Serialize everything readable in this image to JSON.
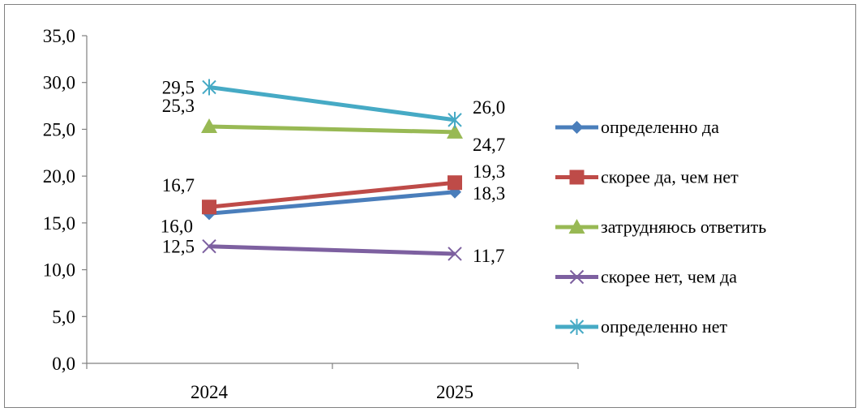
{
  "chart_data": {
    "type": "line",
    "title": "",
    "xlabel": "",
    "ylabel": "",
    "categories": [
      "2024",
      "2025"
    ],
    "ylim": [
      0,
      35
    ],
    "ytick_step": 5,
    "ytick_labels": [
      "0,0",
      "5,0",
      "10,0",
      "15,0",
      "20,0",
      "25,0",
      "30,0",
      "35,0"
    ],
    "grid": false,
    "legend_position": "right",
    "series": [
      {
        "name": "определенно да",
        "values": [
          16.0,
          18.3
        ],
        "labels": [
          "16,0",
          "18,3"
        ],
        "color": "#4a7ebb",
        "marker": "diamond"
      },
      {
        "name": "скорее да, чем нет",
        "values": [
          16.7,
          19.3
        ],
        "labels": [
          "16,7",
          "19,3"
        ],
        "color": "#be4b48",
        "marker": "square"
      },
      {
        "name": "затрудняюсь ответить",
        "values": [
          25.3,
          24.7
        ],
        "labels": [
          "25,3",
          "24,7"
        ],
        "color": "#98b954",
        "marker": "triangle"
      },
      {
        "name": "скорее нет, чем да",
        "values": [
          12.5,
          11.7
        ],
        "labels": [
          "12,5",
          "11,7"
        ],
        "color": "#7d60a0",
        "marker": "x"
      },
      {
        "name": "определенно нет",
        "values": [
          29.5,
          26.0
        ],
        "labels": [
          "29,5",
          "26,0"
        ],
        "color": "#46aac5",
        "marker": "asterisk"
      }
    ]
  }
}
